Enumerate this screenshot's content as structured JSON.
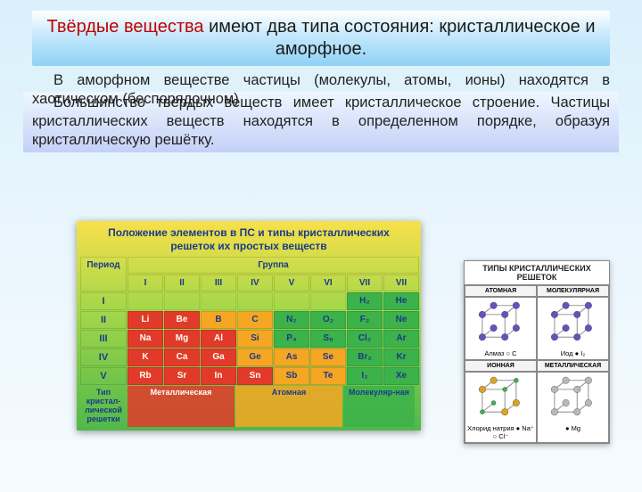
{
  "title": {
    "red": "Твёрдые вещества",
    "rest": " имеют два типа состояния: кристаллическое и аморфное."
  },
  "para1": "В аморфном веществе частицы (молекулы, атомы, ионы) находятся в хаотическом (беспорядочном)",
  "para2": "Большинство твёрдых веществ имеет кристаллическое строение. Частицы кристаллических веществ находятся в определенном порядке, образуя кристаллическую решётку.",
  "ptable": {
    "title": "Положение элементов в ПС и типы кристаллических решеток их простых веществ",
    "period_label": "Период",
    "group_label": "Группа",
    "groups": [
      "I",
      "II",
      "III",
      "IV",
      "V",
      "VI",
      "VII",
      "VII"
    ],
    "periods": [
      "I",
      "II",
      "III",
      "IV",
      "V"
    ],
    "colors": {
      "metal": "#e23a2a",
      "atom": "#f5a623",
      "mol": "#3cb24a",
      "header_text": "#1a3a8a"
    },
    "rows": [
      [
        {
          "t": "",
          "c": "blank"
        },
        {
          "t": "",
          "c": "blank"
        },
        {
          "t": "",
          "c": "blank"
        },
        {
          "t": "",
          "c": "blank"
        },
        {
          "t": "",
          "c": "blank"
        },
        {
          "t": "",
          "c": "blank"
        },
        {
          "t": "H₂",
          "c": "mol"
        },
        {
          "t": "He",
          "c": "mol"
        }
      ],
      [
        {
          "t": "Li",
          "c": "metal"
        },
        {
          "t": "Be",
          "c": "metal"
        },
        {
          "t": "B",
          "c": "atom"
        },
        {
          "t": "C",
          "c": "atom"
        },
        {
          "t": "N₂",
          "c": "mol"
        },
        {
          "t": "O₂",
          "c": "mol"
        },
        {
          "t": "F₂",
          "c": "mol"
        },
        {
          "t": "Ne",
          "c": "mol"
        }
      ],
      [
        {
          "t": "Na",
          "c": "metal"
        },
        {
          "t": "Mg",
          "c": "metal"
        },
        {
          "t": "Al",
          "c": "metal"
        },
        {
          "t": "Si",
          "c": "atom"
        },
        {
          "t": "P₄",
          "c": "mol"
        },
        {
          "t": "S₈",
          "c": "mol"
        },
        {
          "t": "Cl₂",
          "c": "mol"
        },
        {
          "t": "Ar",
          "c": "mol"
        }
      ],
      [
        {
          "t": "K",
          "c": "metal"
        },
        {
          "t": "Ca",
          "c": "metal"
        },
        {
          "t": "Ga",
          "c": "metal"
        },
        {
          "t": "Ge",
          "c": "atom"
        },
        {
          "t": "As",
          "c": "atom"
        },
        {
          "t": "Se",
          "c": "atom"
        },
        {
          "t": "Br₂",
          "c": "mol"
        },
        {
          "t": "Kr",
          "c": "mol"
        }
      ],
      [
        {
          "t": "Rb",
          "c": "metal"
        },
        {
          "t": "Sr",
          "c": "metal"
        },
        {
          "t": "In",
          "c": "metal"
        },
        {
          "t": "Sn",
          "c": "metal"
        },
        {
          "t": "Sb",
          "c": "atom"
        },
        {
          "t": "Te",
          "c": "atom"
        },
        {
          "t": "I₂",
          "c": "mol"
        },
        {
          "t": "Xe",
          "c": "mol"
        }
      ]
    ],
    "footer": {
      "label": "Тип кристал-лической решетки",
      "metal": "Металлическая",
      "atom": "Атомная",
      "mol": "Молекуляр-ная"
    }
  },
  "lattice": {
    "title": "ТИПЫ КРИСТАЛЛИЧЕСКИХ РЕШЕТОК",
    "heads": [
      "АТОМНАЯ",
      "МОЛЕКУЛЯРНАЯ",
      "ИОННАЯ",
      "МЕТАЛЛИЧЕСКАЯ"
    ],
    "captions": [
      {
        "txt": "Алмаз",
        "sym": "○ C"
      },
      {
        "txt": "Иод",
        "sym": "● I₂"
      },
      {
        "txt": "Хлорид натрия",
        "sym": "● Na⁺ ○ Cl⁻"
      },
      {
        "txt": "",
        "sym": "● Mg"
      }
    ],
    "colors": {
      "atom": "#6a4fbf",
      "edge": "#7a7a7a",
      "na": "#d9a420",
      "cl": "#3cb24a",
      "mg": "#b8b8b8"
    }
  }
}
